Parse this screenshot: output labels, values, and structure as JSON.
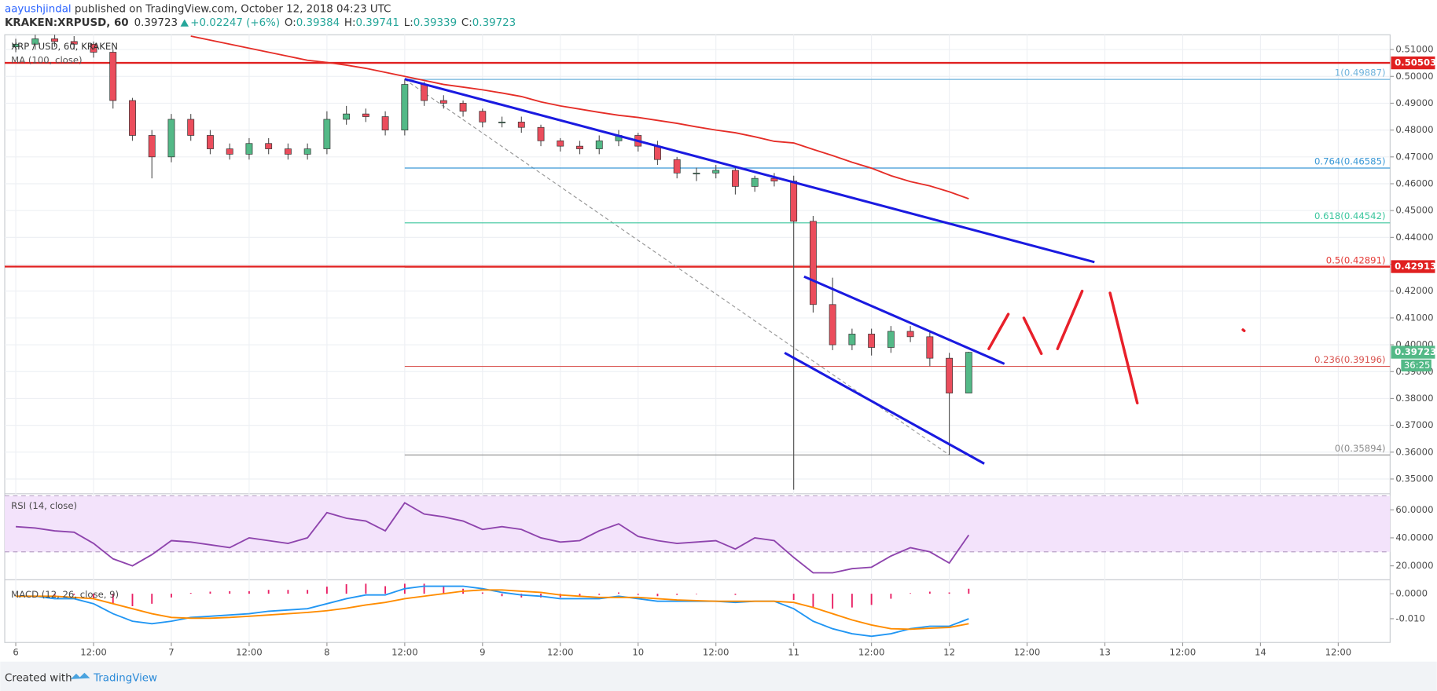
{
  "header": {
    "author": "aayushjindal",
    "published": "published on TradingView.com, October 12, 2018 04:23 UTC",
    "symbol": "KRAKEN:XRPUSD, 60",
    "last": 0.39723,
    "change": "+0.02247 (+6%)",
    "ohlc": [
      {
        "key": "O:",
        "value": 0.39384
      },
      {
        "key": "H:",
        "value": 0.39741
      },
      {
        "key": "L:",
        "value": 0.39339
      },
      {
        "key": "C:",
        "value": 0.39723
      }
    ]
  },
  "footer": {
    "created": "Created with",
    "brand": "TradingView"
  },
  "chart_data": [
    {
      "type": "candlestick",
      "title": "XRP / USD, 60, KRAKEN",
      "x": [
        0,
        3,
        6,
        9,
        12,
        15,
        18,
        21,
        24,
        27,
        30,
        33,
        36,
        39,
        42,
        45,
        48,
        51,
        54,
        57,
        60,
        63,
        66,
        69,
        72,
        75,
        78,
        81,
        84,
        87,
        90,
        93,
        96,
        99,
        102,
        105,
        108,
        111,
        114,
        117,
        120,
        123,
        126,
        129,
        132,
        135,
        138,
        141,
        144,
        147
      ],
      "open": [
        0.511,
        0.512,
        0.514,
        0.513,
        0.512,
        0.509,
        0.491,
        0.478,
        0.47,
        0.484,
        0.478,
        0.473,
        0.471,
        0.475,
        0.473,
        0.471,
        0.473,
        0.484,
        0.486,
        0.485,
        0.48,
        0.497,
        0.491,
        0.49,
        0.487,
        0.483,
        0.483,
        0.481,
        0.476,
        0.474,
        0.473,
        0.476,
        0.478,
        0.474,
        0.469,
        0.464,
        0.464,
        0.465,
        0.459,
        0.462,
        0.461,
        0.446,
        0.415,
        0.4,
        0.404,
        0.399,
        0.405,
        0.403,
        0.395,
        0.382
      ],
      "high": [
        0.514,
        0.516,
        0.516,
        0.515,
        0.513,
        0.51,
        0.492,
        0.48,
        0.486,
        0.486,
        0.48,
        0.475,
        0.477,
        0.477,
        0.475,
        0.475,
        0.487,
        0.489,
        0.488,
        0.487,
        0.499,
        0.498,
        0.493,
        0.491,
        0.488,
        0.485,
        0.485,
        0.482,
        0.477,
        0.476,
        0.478,
        0.48,
        0.479,
        0.476,
        0.47,
        0.466,
        0.467,
        0.466,
        0.463,
        0.464,
        0.463,
        0.448,
        0.425,
        0.406,
        0.406,
        0.407,
        0.407,
        0.405,
        0.397,
        0.3974
      ],
      "low": [
        0.509,
        0.51,
        0.511,
        0.51,
        0.507,
        0.488,
        0.476,
        0.462,
        0.468,
        0.476,
        0.471,
        0.469,
        0.469,
        0.471,
        0.469,
        0.469,
        0.471,
        0.482,
        0.483,
        0.478,
        0.478,
        0.489,
        0.488,
        0.485,
        0.481,
        0.481,
        0.479,
        0.474,
        0.472,
        0.471,
        0.471,
        0.474,
        0.472,
        0.467,
        0.462,
        0.461,
        0.462,
        0.456,
        0.457,
        0.459,
        0.346,
        0.412,
        0.398,
        0.398,
        0.396,
        0.397,
        0.401,
        0.392,
        0.359,
        0.382
      ],
      "close": [
        0.512,
        0.514,
        0.513,
        0.512,
        0.509,
        0.491,
        0.478,
        0.47,
        0.484,
        0.478,
        0.473,
        0.471,
        0.475,
        0.473,
        0.471,
        0.473,
        0.484,
        0.486,
        0.485,
        0.48,
        0.497,
        0.491,
        0.49,
        0.487,
        0.483,
        0.483,
        0.481,
        0.476,
        0.474,
        0.473,
        0.476,
        0.478,
        0.474,
        0.469,
        0.464,
        0.464,
        0.465,
        0.459,
        0.462,
        0.461,
        0.446,
        0.415,
        0.4,
        0.404,
        0.399,
        0.405,
        0.403,
        0.395,
        0.382,
        0.3972
      ],
      "up_color": "#53b987",
      "down_color": "#eb4d5c",
      "series": [
        {
          "name": "MA (100, close)",
          "color": "#e52d27",
          "values": [
            null,
            null,
            null,
            null,
            null,
            null,
            null,
            null,
            null,
            0.515,
            0.5135,
            0.512,
            0.5105,
            0.509,
            0.5075,
            0.506,
            0.5052,
            0.5042,
            0.503,
            0.5015,
            0.5,
            0.4985,
            0.497,
            0.496,
            0.495,
            0.4938,
            0.4925,
            0.4905,
            0.489,
            0.4878,
            0.4866,
            0.4855,
            0.4847,
            0.4836,
            0.4825,
            0.4812,
            0.48,
            0.479,
            0.4775,
            0.4758,
            0.4752,
            0.4728,
            0.4705,
            0.468,
            0.4658,
            0.463,
            0.4608,
            0.4592,
            0.457,
            0.4544
          ]
        }
      ],
      "xlim": [
        -1.7,
        212
      ],
      "xticks": [
        {
          "value": 0,
          "label": "6"
        },
        {
          "value": 12,
          "label": "12:00"
        },
        {
          "value": 24,
          "label": "7"
        },
        {
          "value": 36,
          "label": "12:00"
        },
        {
          "value": 48,
          "label": "8"
        },
        {
          "value": 60,
          "label": "12:00"
        },
        {
          "value": 72,
          "label": "9"
        },
        {
          "value": 84,
          "label": "12:00"
        },
        {
          "value": 96,
          "label": "10"
        },
        {
          "value": 108,
          "label": "12:00"
        },
        {
          "value": 120,
          "label": "11"
        },
        {
          "value": 132,
          "label": "12:00"
        },
        {
          "value": 144,
          "label": "12"
        },
        {
          "value": 156,
          "label": "12:00"
        },
        {
          "value": 168,
          "label": "13"
        },
        {
          "value": 180,
          "label": "12:00"
        },
        {
          "value": 192,
          "label": "14"
        },
        {
          "value": 204,
          "label": "12:00"
        }
      ],
      "ylim": [
        0.345,
        0.5155
      ],
      "yticks": [
        {
          "value": 0.51,
          "label": "0.51000"
        },
        {
          "value": 0.5,
          "label": "0.50000"
        },
        {
          "value": 0.49,
          "label": "0.49000"
        },
        {
          "value": 0.48,
          "label": "0.48000"
        },
        {
          "value": 0.47,
          "label": "0.47000"
        },
        {
          "value": 0.46,
          "label": "0.46000"
        },
        {
          "value": 0.45,
          "label": "0.45000"
        },
        {
          "value": 0.44,
          "label": "0.44000"
        },
        {
          "value": 0.43,
          "label": "0.43000"
        },
        {
          "value": 0.42,
          "label": "0.42000"
        },
        {
          "value": 0.41,
          "label": "0.41000"
        },
        {
          "value": 0.4,
          "label": "0.40000"
        },
        {
          "value": 0.39,
          "label": "0.39000"
        },
        {
          "value": 0.38,
          "label": "0.38000"
        },
        {
          "value": 0.37,
          "label": "0.37000"
        },
        {
          "value": 0.36,
          "label": "0.36000"
        },
        {
          "value": 0.35,
          "label": "0.35000"
        }
      ],
      "grid": true,
      "hlines": [
        {
          "value": 0.50503,
          "color": "#e02020"
        },
        {
          "value": 0.42913,
          "color": "#e02020"
        }
      ],
      "fib_anchor": {
        "x": [
          60,
          144
        ],
        "y": [
          0.49887,
          0.35894
        ]
      },
      "fib": [
        {
          "label": "1(0.49887)",
          "value": 0.49887,
          "color": "#6fb3dc"
        },
        {
          "label": "0.764(0.46585)",
          "value": 0.46585,
          "color": "#3a98d6"
        },
        {
          "label": "0.618(0.44542)",
          "value": 0.44542,
          "color": "#3cc69e"
        },
        {
          "label": "0.5(0.42891)",
          "value": 0.42891,
          "color": "#e53935"
        },
        {
          "label": "0.236(0.39196)",
          "value": 0.39196,
          "color": "#d9534f"
        },
        {
          "label": "0(0.35894)",
          "value": 0.35894,
          "color": "#8a8a8a"
        }
      ],
      "trendlines": [
        {
          "x": [
            60,
            166.4
          ],
          "y": [
            0.499,
            0.4308
          ],
          "color": "#1a1ae0"
        },
        {
          "x": [
            121.6,
            152.5
          ],
          "y": [
            0.4254,
            0.3929
          ],
          "color": "#1a1ae0"
        },
        {
          "x": [
            118.6,
            149.4
          ],
          "y": [
            0.397,
            0.3557
          ],
          "color": "#1a1ae0"
        }
      ],
      "sketch": [
        {
          "x": [
            150.1,
            153.1
          ],
          "y": [
            0.3985,
            0.4114
          ]
        },
        {
          "x": [
            155.5,
            158.2
          ],
          "y": [
            0.41,
            0.3967
          ]
        },
        {
          "x": [
            160.7,
            164.5
          ],
          "y": [
            0.3985,
            0.42
          ]
        },
        {
          "x": [
            168.8,
            173.0
          ],
          "y": [
            0.4193,
            0.3783
          ]
        },
        {
          "x": [
            189.3,
            189.5
          ],
          "y": [
            0.4056,
            0.4052
          ]
        }
      ],
      "sketch_color": "#e8202a",
      "last_price": 0.39723,
      "countdown": "36:25",
      "tag_color": "#53b987"
    },
    {
      "type": "line",
      "title": "RSI (14, close)",
      "x": [
        0,
        3,
        6,
        9,
        12,
        15,
        18,
        21,
        24,
        27,
        30,
        33,
        36,
        39,
        42,
        45,
        48,
        51,
        54,
        57,
        60,
        63,
        66,
        69,
        72,
        75,
        78,
        81,
        84,
        87,
        90,
        93,
        96,
        99,
        102,
        105,
        108,
        111,
        114,
        117,
        120,
        123,
        126,
        129,
        132,
        135,
        138,
        141,
        144,
        147
      ],
      "series": [
        {
          "name": "RSI",
          "color": "#8e44ad",
          "values": [
            48,
            47,
            45,
            44,
            36,
            25,
            20,
            28,
            38,
            37,
            35,
            33,
            40,
            38,
            36,
            40,
            58,
            54,
            52,
            45,
            65,
            57,
            55,
            52,
            46,
            48,
            46,
            40,
            37,
            38,
            45,
            50,
            41,
            38,
            36,
            37,
            38,
            32,
            40,
            38,
            26,
            15,
            15,
            18,
            19,
            27,
            33,
            30,
            22,
            42
          ]
        }
      ],
      "band": [
        30,
        70
      ],
      "band_color": "#f3e3fb",
      "ylim": [
        11,
        70.5
      ],
      "yticks": [
        {
          "value": 60,
          "label": "60.0000"
        },
        {
          "value": 40,
          "label": "40.0000"
        },
        {
          "value": 20,
          "label": "20.0000"
        }
      ]
    },
    {
      "type": "macd",
      "title": "MACD (12, 26, close, 9)",
      "x": [
        0,
        3,
        6,
        9,
        12,
        15,
        18,
        21,
        24,
        27,
        30,
        33,
        36,
        39,
        42,
        45,
        48,
        51,
        54,
        57,
        60,
        63,
        66,
        69,
        72,
        75,
        78,
        81,
        84,
        87,
        90,
        93,
        96,
        99,
        102,
        105,
        108,
        111,
        114,
        117,
        120,
        123,
        126,
        129,
        132,
        135,
        138,
        141,
        144,
        147
      ],
      "series": [
        {
          "name": "MACD",
          "color": "#2196f3",
          "values": [
            -0.001,
            -0.001,
            -0.002,
            -0.002,
            -0.004,
            -0.008,
            -0.011,
            -0.012,
            -0.011,
            -0.0095,
            -0.009,
            -0.0085,
            -0.008,
            -0.007,
            -0.0065,
            -0.006,
            -0.004,
            -0.002,
            -0.0005,
            -0.0005,
            0.002,
            0.003,
            0.003,
            0.003,
            0.002,
            0.0005,
            -0.0005,
            -0.001,
            -0.002,
            -0.002,
            -0.002,
            -0.001,
            -0.002,
            -0.003,
            -0.003,
            -0.003,
            -0.003,
            -0.0035,
            -0.003,
            -0.003,
            -0.006,
            -0.011,
            -0.014,
            -0.016,
            -0.017,
            -0.016,
            -0.014,
            -0.013,
            -0.013,
            -0.01
          ]
        },
        {
          "name": "Signal",
          "color": "#ff8c00",
          "values": [
            -0.001,
            -0.001,
            -0.001,
            -0.0015,
            -0.002,
            -0.004,
            -0.006,
            -0.008,
            -0.0095,
            -0.0098,
            -0.0098,
            -0.0095,
            -0.009,
            -0.0085,
            -0.008,
            -0.0075,
            -0.0068,
            -0.0058,
            -0.0045,
            -0.0035,
            -0.002,
            -0.001,
            0,
            0.001,
            0.0015,
            0.0015,
            0.001,
            0.0005,
            -0.0005,
            -0.001,
            -0.0015,
            -0.0015,
            -0.0015,
            -0.002,
            -0.0025,
            -0.0028,
            -0.003,
            -0.003,
            -0.003,
            -0.003,
            -0.0035,
            -0.0055,
            -0.008,
            -0.0105,
            -0.0125,
            -0.014,
            -0.0142,
            -0.0138,
            -0.0135,
            -0.012
          ]
        }
      ],
      "histogram": [
        0,
        0,
        -0.001,
        -0.0005,
        -0.002,
        -0.004,
        -0.005,
        -0.004,
        -0.0015,
        0.0003,
        0.0008,
        0.001,
        0.001,
        0.0015,
        0.0015,
        0.0015,
        0.0028,
        0.0038,
        0.004,
        0.003,
        0.004,
        0.004,
        0.003,
        0.002,
        0.0005,
        -0.001,
        -0.0015,
        -0.0015,
        -0.0015,
        -0.001,
        -0.0005,
        0.0005,
        -0.0005,
        -0.001,
        -0.0005,
        -0.0002,
        0,
        -0.0005,
        0,
        0,
        -0.0025,
        -0.0055,
        -0.006,
        -0.0055,
        -0.0045,
        -0.002,
        0.0002,
        0.0008,
        0.0005,
        0.002
      ],
      "histogram_color": "#e91e63",
      "ylim": [
        -0.0195,
        0.005
      ],
      "yticks": [
        {
          "value": 0,
          "label": "0.0000"
        },
        {
          "value": -0.01,
          "label": "-0.010"
        }
      ]
    }
  ]
}
